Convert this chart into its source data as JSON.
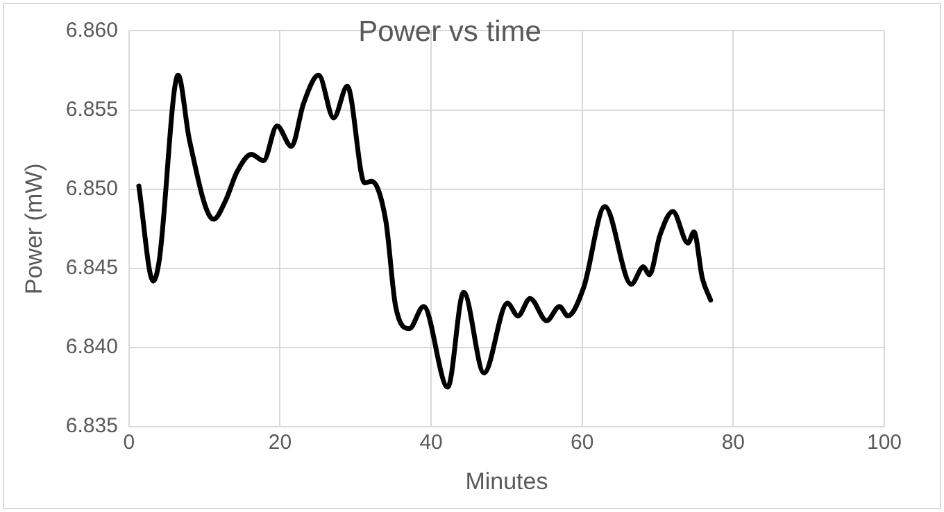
{
  "chart_data": {
    "type": "line",
    "title": "Power vs time",
    "xlabel": "Minutes",
    "ylabel": "Power (mW)",
    "x": [
      1.3,
      3.2,
      4,
      6.5,
      8,
      11.2,
      12.8,
      14.3,
      16.2,
      17.8,
      19.6,
      21.5,
      23.1,
      25.1,
      27.1,
      28.9,
      31.2,
      32.1,
      34,
      35.3,
      37.1,
      39,
      42.2,
      44.3,
      47,
      50.1,
      51.5,
      53.1,
      55.3,
      57,
      58.1,
      60.2,
      63,
      66.5,
      68.1,
      68.9,
      70.3,
      72,
      74,
      74.8,
      75.9,
      77
    ],
    "series": [
      {
        "color": "#000000",
        "values": [
          6.8502,
          6.8442,
          6.8455,
          6.8572,
          6.8531,
          6.8481,
          6.8493,
          6.8511,
          6.8522,
          6.8518,
          6.854,
          6.8527,
          6.8554,
          6.8572,
          6.8545,
          6.8565,
          6.8504,
          6.8505,
          6.848,
          6.8426,
          6.8412,
          6.8426,
          6.8375,
          6.8435,
          6.8384,
          6.8428,
          6.842,
          6.8431,
          6.8417,
          6.8426,
          6.842,
          6.8438,
          6.8489,
          6.844,
          6.8451,
          6.8446,
          6.8471,
          6.8486,
          6.8466,
          6.8473,
          6.8444,
          6.843
        ]
      }
    ],
    "xlim": [
      0,
      100
    ],
    "xticks": [
      0,
      20,
      40,
      60,
      80,
      100
    ],
    "ylim": [
      6.835,
      6.86
    ],
    "yticks": [
      {
        "value": 6.835,
        "label": "6.835"
      },
      {
        "value": 6.84,
        "label": "6.840"
      },
      {
        "value": 6.845,
        "label": "6.845"
      },
      {
        "value": 6.85,
        "label": "6.850"
      },
      {
        "value": 6.855,
        "label": "6.855"
      },
      {
        "value": 6.86,
        "label": "6.860"
      }
    ],
    "grid": true,
    "legend": false,
    "marker": "none",
    "line_style": "solid"
  }
}
